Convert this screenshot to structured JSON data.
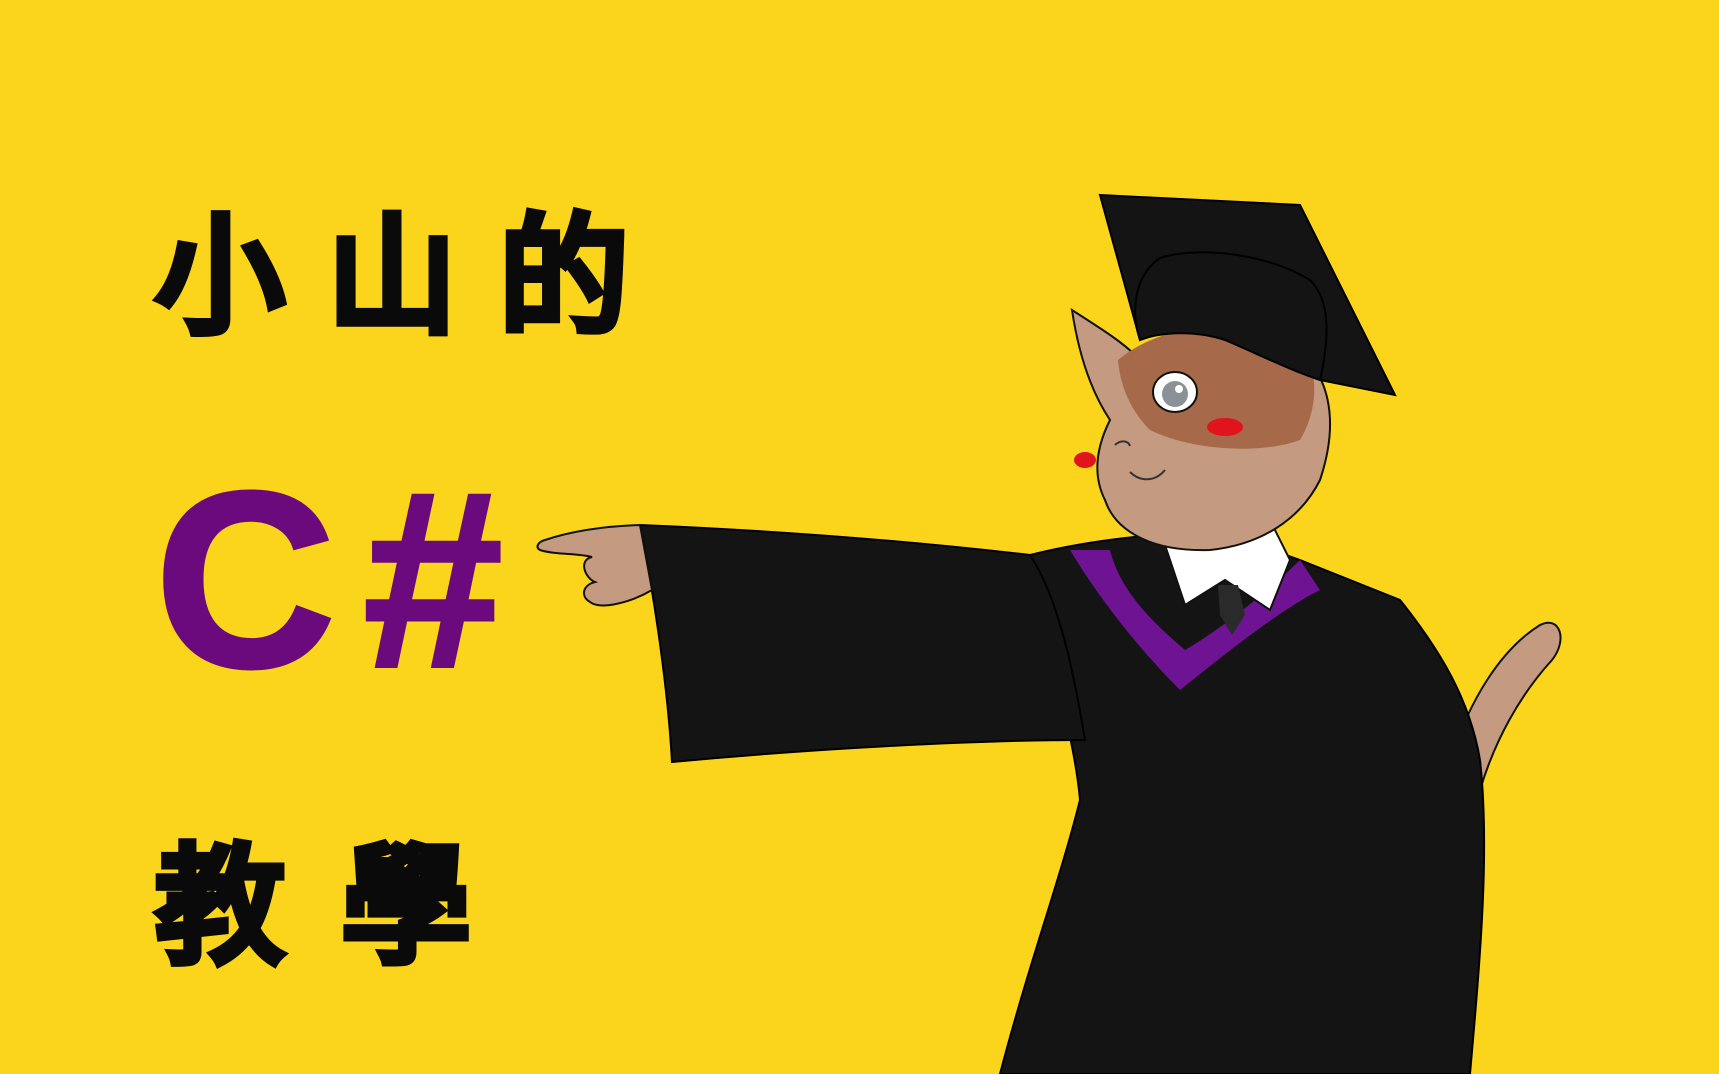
{
  "colors": {
    "background": "#FBD51B",
    "title_text": "#0A0A0A",
    "language_text": "#6B0A7C",
    "gown": "#141414",
    "stole": "#6E1392",
    "fur": "#C49A80",
    "mask": "#A66A4A",
    "blush": "#E1141E"
  },
  "title": {
    "line1": "小山的",
    "line2": "C#",
    "line3": "教學"
  },
  "mascot": {
    "subject": "cat-in-graduation-gown",
    "icons": [
      "mortarboard-cap-icon",
      "pointing-hand-icon",
      "necktie-icon"
    ]
  }
}
